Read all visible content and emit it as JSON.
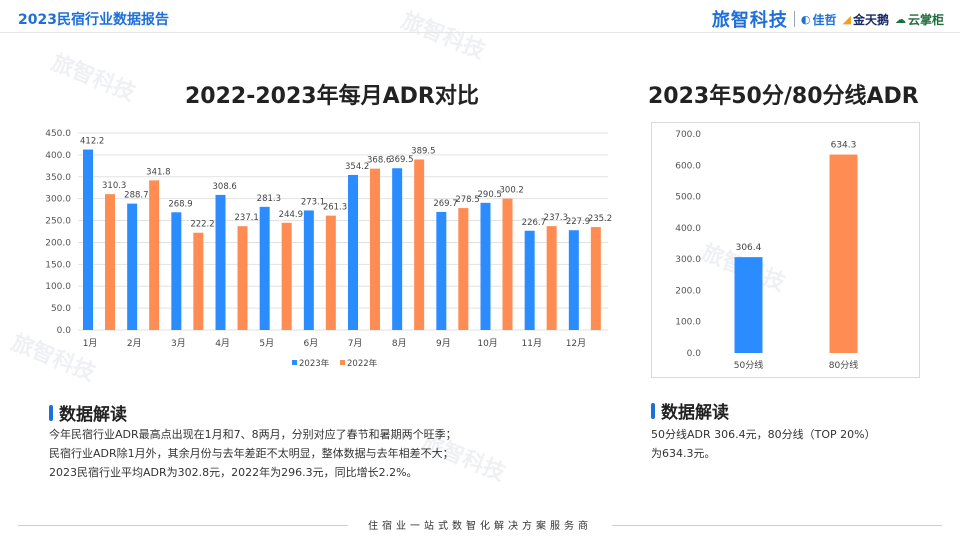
{
  "header": {
    "report_title": "2023民宿行业数据报告",
    "brand_main": "旅智科技",
    "brand_1": "佳哲",
    "brand_2": "金天鹅",
    "brand_3": "云掌柜"
  },
  "colors": {
    "series_2023": "#2b8cff",
    "series_2022": "#ff8c52",
    "accent": "#1e6fd9"
  },
  "chart_data": [
    {
      "type": "bar",
      "title": "2022-2023年每月ADR对比",
      "categories": [
        "1月",
        "2月",
        "3月",
        "4月",
        "5月",
        "6月",
        "7月",
        "8月",
        "9月",
        "10月",
        "11月",
        "12月"
      ],
      "series": [
        {
          "name": "2023年",
          "values": [
            412.2,
            288.7,
            268.9,
            308.6,
            281.3,
            273.1,
            354.2,
            369.5,
            269.7,
            290.5,
            226.7,
            227.9
          ]
        },
        {
          "name": "2022年",
          "values": [
            310.3,
            341.8,
            222.2,
            237.1,
            244.9,
            261.3,
            368.6,
            389.5,
            278.5,
            300.2,
            237.3,
            235.2
          ]
        }
      ],
      "ylim": [
        0,
        450
      ],
      "yticks": [
        0,
        50,
        100,
        150,
        200,
        250,
        300,
        350,
        400,
        450
      ],
      "legend": "bottom",
      "grid": true
    },
    {
      "type": "bar",
      "title": "2023年50分/80分线ADR",
      "categories": [
        "50分线",
        "80分线"
      ],
      "values": [
        306.4,
        634.3
      ],
      "ylim": [
        0,
        700
      ],
      "yticks": [
        0,
        100,
        200,
        300,
        400,
        500,
        600,
        700
      ],
      "grid": false
    }
  ],
  "left_text": {
    "heading": "数据解读",
    "lines": [
      "今年民宿行业ADR最高点出现在1月和7、8两月，分别对应了春节和暑期两个旺季；",
      "民宿行业ADR除1月外，其余月份与去年差距不太明显，整体数据与去年相差不大；",
      "2023民宿行业平均ADR为302.8元，2022年为296.3元，同比增长2.2%。"
    ]
  },
  "right_text": {
    "heading": "数据解读",
    "lines": [
      "50分线ADR 306.4元，80分线（TOP 20%）",
      "为634.3元。"
    ]
  },
  "footer": "住宿业一站式数智化解决方案服务商"
}
